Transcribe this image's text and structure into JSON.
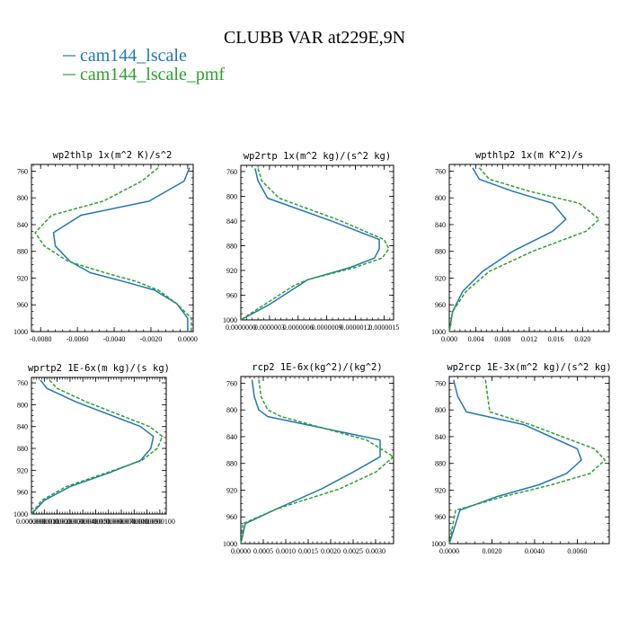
{
  "figure": {
    "title": "CLUBB VAR at229E,9N",
    "legend": [
      {
        "label": "cam144_lscale",
        "color": "#1f77b4",
        "dash": "none"
      },
      {
        "label": "cam144_lscale_pmf",
        "color": "#2ca02c",
        "dash": "4 2"
      }
    ]
  },
  "chart_data": [
    {
      "type": "line",
      "title": "wp2thlp  1x(m^2 K)/s^2",
      "xlim": [
        -0.0085,
        0.0003
      ],
      "ylim": [
        1000,
        750
      ],
      "xticks": [
        -0.008,
        -0.006,
        -0.004,
        -0.002,
        0.0
      ],
      "xtick_labels": [
        "-0.0080",
        "-0.0060",
        "-0.0040",
        "-0.0020",
        "0.0000"
      ],
      "yticks": [
        760,
        800,
        840,
        880,
        920,
        960,
        1000
      ],
      "series": [
        {
          "name": "cam144_lscale",
          "x": [
            0.0001,
            -0.0002,
            -0.0021,
            -0.0058,
            -0.0073,
            -0.0072,
            -0.0064,
            -0.0053,
            -0.0035,
            -0.0018,
            -0.0006,
            0.0,
            0.0
          ],
          "y": [
            755,
            775,
            805,
            826,
            852,
            872,
            895,
            912,
            925,
            938,
            958,
            980,
            1000
          ]
        },
        {
          "name": "cam144_lscale_pmf",
          "x": [
            -0.0016,
            -0.0025,
            -0.0046,
            -0.0074,
            -0.0083,
            -0.0078,
            -0.0065,
            -0.0045,
            -0.0028,
            -0.0016,
            -0.0006,
            0.0002,
            0.0002
          ],
          "y": [
            755,
            775,
            805,
            826,
            852,
            872,
            895,
            912,
            925,
            938,
            958,
            980,
            1000
          ]
        }
      ]
    },
    {
      "type": "line",
      "title": "wp2rtp  1x(m^2 kg)/(s^2 kg)",
      "xlim": [
        0.0,
        1.6e-06
      ],
      "ylim": [
        1000,
        750
      ],
      "xticks": [
        0.0,
        3e-07,
        6e-07,
        9e-07,
        1.2e-06,
        1.5e-06
      ],
      "xtick_labels": [
        "0.0000000",
        "0.0000003",
        "0.0000006",
        "0.0000009",
        "0.0000012",
        "0.0000015"
      ],
      "yticks": [
        760,
        800,
        840,
        880,
        920,
        960,
        1000
      ],
      "series": [
        {
          "name": "cam144_lscale",
          "x": [
            1.5e-07,
            1.8e-07,
            2.8e-07,
            9.5e-07,
            1.45e-06,
            1.45e-06,
            1.4e-06,
            1.15e-06,
            7e-07,
            6e-07,
            3e-07,
            0.0
          ],
          "y": [
            755,
            775,
            803,
            840,
            870,
            885,
            900,
            915,
            935,
            945,
            975,
            1000
          ]
        },
        {
          "name": "cam144_lscale_pmf",
          "x": [
            1.8e-07,
            2.2e-07,
            4e-07,
            1.05e-06,
            1.5e-06,
            1.55e-06,
            1.48e-06,
            1.2e-06,
            7e-07,
            5.5e-07,
            2.5e-07,
            0.0
          ],
          "y": [
            755,
            775,
            803,
            840,
            870,
            885,
            900,
            915,
            935,
            945,
            975,
            1000
          ]
        }
      ]
    },
    {
      "type": "line",
      "title": "wpthlp2  1x(m K^2)/s",
      "xlim": [
        0.0,
        0.024
      ],
      "ylim": [
        1000,
        750
      ],
      "xticks": [
        0.0,
        0.004,
        0.008,
        0.012,
        0.016,
        0.02
      ],
      "xtick_labels": [
        "0.000",
        "0.004",
        "0.008",
        "0.012",
        "0.016",
        "0.020"
      ],
      "yticks": [
        760,
        800,
        840,
        880,
        920,
        960,
        1000
      ],
      "series": [
        {
          "name": "cam144_lscale",
          "x": [
            0.0035,
            0.0045,
            0.0095,
            0.0155,
            0.0175,
            0.0155,
            0.0095,
            0.005,
            0.002,
            0.0005,
            0.0
          ],
          "y": [
            755,
            772,
            790,
            808,
            832,
            850,
            880,
            910,
            940,
            970,
            1000
          ]
        },
        {
          "name": "cam144_lscale_pmf",
          "x": [
            0.0045,
            0.006,
            0.012,
            0.0195,
            0.0225,
            0.0205,
            0.0125,
            0.006,
            0.0025,
            0.0005,
            0.0
          ],
          "y": [
            755,
            772,
            790,
            808,
            832,
            850,
            880,
            910,
            940,
            970,
            1000
          ]
        }
      ]
    },
    {
      "type": "line",
      "title": "wprtp2  1E-6x(m kg)/(s kg)",
      "xlim": [
        0.0,
        1.05e-05
      ],
      "ylim": [
        1000,
        750
      ],
      "xticks": [
        0.0,
        1e-06,
        2e-06,
        3e-06,
        4e-06,
        5e-06,
        6e-06,
        7e-06,
        8e-06,
        9e-06,
        1e-05
      ],
      "xtick_labels": [
        "0.0000000",
        "0.0000010",
        "0.0000020",
        "0.0000030",
        "0.0000040",
        "0.0000050",
        "0.0000060",
        "0.0000070",
        "0.0000080",
        "0.0000090",
        "0.0000100"
      ],
      "yticks": [
        760,
        800,
        840,
        880,
        920,
        960,
        1000
      ],
      "series": [
        {
          "name": "cam144_lscale",
          "x": [
            7e-07,
            1.2e-06,
            3.5e-06,
            8.5e-06,
            9.5e-06,
            9.3e-06,
            8.5e-06,
            6e-06,
            3e-06,
            1e-06,
            0.0
          ],
          "y": [
            755,
            770,
            795,
            840,
            858,
            880,
            902,
            925,
            950,
            975,
            1000
          ]
        },
        {
          "name": "cam144_lscale_pmf",
          "x": [
            1.4e-06,
            2e-06,
            4.3e-06,
            9.2e-06,
            1.02e-05,
            9.8e-06,
            8.6e-06,
            5.8e-06,
            2.7e-06,
            8e-07,
            0.0
          ],
          "y": [
            755,
            770,
            795,
            840,
            858,
            880,
            902,
            925,
            950,
            975,
            1000
          ]
        }
      ]
    },
    {
      "type": "line",
      "title": "rcp2  1E-6x(kg^2)/(kg^2)",
      "xlim": [
        0.0,
        0.0034
      ],
      "ylim": [
        1000,
        750
      ],
      "xticks": [
        0.0,
        0.0005,
        0.001,
        0.0015,
        0.002,
        0.0025,
        0.003
      ],
      "xtick_labels": [
        "0.0000",
        "0.0005",
        "0.0010",
        "0.0015",
        "0.0020",
        "0.0025",
        "0.0030"
      ],
      "yticks": [
        760,
        800,
        840,
        880,
        920,
        960,
        1000
      ],
      "series": [
        {
          "name": "cam144_lscale",
          "x": [
            0.00025,
            0.0003,
            0.0004,
            0.0006,
            0.0031,
            0.0031,
            0.0025,
            0.0018,
            0.0008,
            0.0001,
            0.0
          ],
          "y": [
            755,
            780,
            800,
            810,
            845,
            870,
            893,
            918,
            948,
            970,
            1000
          ]
        },
        {
          "name": "cam144_lscale_pmf",
          "x": [
            0.0004,
            0.00045,
            0.0006,
            0.0009,
            0.0028,
            0.0034,
            0.003,
            0.0022,
            0.0008,
            5e-05,
            0.0
          ],
          "y": [
            755,
            780,
            800,
            810,
            845,
            870,
            893,
            918,
            948,
            970,
            1000
          ]
        }
      ]
    },
    {
      "type": "line",
      "title": "wp2rcp  1E-3x(m^2 kg)/(s^2 kg)",
      "xlim": [
        0.0,
        0.0075
      ],
      "ylim": [
        1000,
        750
      ],
      "xticks": [
        0.0,
        0.002,
        0.004,
        0.006
      ],
      "xtick_labels": [
        "0.0000",
        "0.0020",
        "0.0040",
        "0.0060"
      ],
      "yticks": [
        760,
        800,
        840,
        880,
        920,
        960,
        1000
      ],
      "series": [
        {
          "name": "cam144_lscale",
          "x": [
            0.0002,
            0.0004,
            0.0008,
            0.0035,
            0.006,
            0.0062,
            0.0055,
            0.0042,
            0.0022,
            0.0005,
            0.0
          ],
          "y": [
            755,
            780,
            803,
            822,
            858,
            875,
            895,
            912,
            930,
            950,
            1000
          ]
        },
        {
          "name": "cam144_lscale_pmf",
          "x": [
            0.0017,
            0.0018,
            0.0019,
            0.0038,
            0.0068,
            0.0073,
            0.0066,
            0.0048,
            0.0025,
            0.0003,
            0.0
          ],
          "y": [
            755,
            780,
            803,
            822,
            858,
            875,
            895,
            912,
            930,
            950,
            1000
          ]
        }
      ]
    }
  ]
}
